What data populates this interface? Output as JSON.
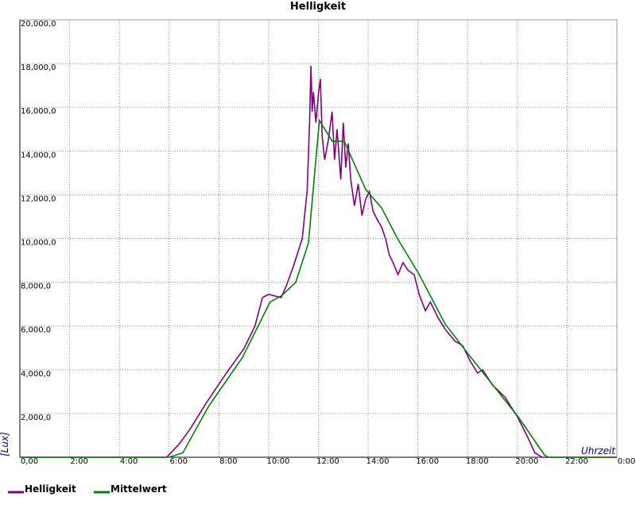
{
  "chart_data": {
    "type": "line",
    "title": "Helligkeit",
    "x_label": "Uhrzeit",
    "y_label": "[Lux]",
    "xlim": [
      0,
      24
    ],
    "ylim": [
      0,
      20000
    ],
    "grid": true,
    "xticks": [
      {
        "value": 0,
        "label": "0,00"
      },
      {
        "value": 2,
        "label": "2:00"
      },
      {
        "value": 4,
        "label": "4:00"
      },
      {
        "value": 6,
        "label": "6:00"
      },
      {
        "value": 8,
        "label": "8:00"
      },
      {
        "value": 10,
        "label": "10:00"
      },
      {
        "value": 12,
        "label": "12:00"
      },
      {
        "value": 14,
        "label": "14:00"
      },
      {
        "value": 16,
        "label": "16:00"
      },
      {
        "value": 18,
        "label": "18:00"
      },
      {
        "value": 20,
        "label": "20:00"
      },
      {
        "value": 22,
        "label": "22:00"
      },
      {
        "value": 24,
        "label": "0:00"
      }
    ],
    "yticks": [
      {
        "value": 2000,
        "label": "2,000,0"
      },
      {
        "value": 4000,
        "label": "4,000,0"
      },
      {
        "value": 6000,
        "label": "6,000,0"
      },
      {
        "value": 8000,
        "label": "8,000,0"
      },
      {
        "value": 10000,
        "label": "10,000,0"
      },
      {
        "value": 12000,
        "label": "12,000,0"
      },
      {
        "value": 14000,
        "label": "14,000,0"
      },
      {
        "value": 16000,
        "label": "16,000,0"
      },
      {
        "value": 18000,
        "label": "18,000,0"
      },
      {
        "value": 20000,
        "label": "20,000,0"
      }
    ],
    "series": [
      {
        "name": "Helligkeit",
        "color": "#800080",
        "x": [
          0,
          5.9,
          6.4,
          6.85,
          7.5,
          8.3,
          9.0,
          9.45,
          9.75,
          10.0,
          10.5,
          10.7,
          11.0,
          11.35,
          11.55,
          11.65,
          11.7,
          11.75,
          11.8,
          11.9,
          12.0,
          12.08,
          12.15,
          12.25,
          12.4,
          12.55,
          12.65,
          12.75,
          12.9,
          13.0,
          13.1,
          13.2,
          13.3,
          13.45,
          13.6,
          13.75,
          13.9,
          14.05,
          14.2,
          14.35,
          14.55,
          14.7,
          14.85,
          15.0,
          15.2,
          15.4,
          15.6,
          15.85,
          16.05,
          16.3,
          16.5,
          16.8,
          17.1,
          17.5,
          17.8,
          18.1,
          18.4,
          18.6,
          19.0,
          19.5,
          20.0,
          20.4,
          20.7,
          21.0,
          24
        ],
        "values": [
          0,
          0,
          600,
          1300,
          2500,
          3850,
          4950,
          6000,
          7300,
          7450,
          7300,
          7800,
          8750,
          10000,
          12200,
          15500,
          17900,
          15800,
          16700,
          15300,
          16600,
          17300,
          14700,
          13600,
          14500,
          15800,
          13600,
          15000,
          12700,
          15300,
          13250,
          14350,
          12700,
          11500,
          12500,
          11050,
          11800,
          12150,
          11250,
          10900,
          10500,
          10000,
          9250,
          8900,
          8350,
          8900,
          8550,
          8350,
          7450,
          6700,
          7100,
          6400,
          5850,
          5300,
          5100,
          4400,
          3850,
          4000,
          3300,
          2750,
          1850,
          950,
          200,
          0,
          0
        ]
      },
      {
        "name": "Mittelwert",
        "color": "#008000",
        "x": [
          0,
          6.0,
          6.55,
          7.57,
          8.95,
          10.06,
          10.54,
          11.09,
          11.6,
          12.04,
          12.56,
          13.04,
          13.9,
          14.54,
          15.18,
          16.04,
          17.09,
          18.05,
          20.03,
          21.09,
          21.25,
          24
        ],
        "values": [
          0,
          0,
          200,
          2300,
          4570,
          7100,
          7400,
          8000,
          9800,
          15400,
          14450,
          14450,
          12250,
          11400,
          10000,
          8380,
          6100,
          4680,
          1850,
          100,
          0,
          0
        ]
      }
    ]
  }
}
